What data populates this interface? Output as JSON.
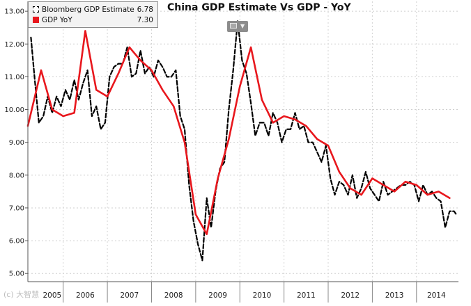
{
  "chart_data": {
    "type": "line",
    "title": "China GDP Estimate Vs GDP - YoY",
    "xlabel": "",
    "ylabel": "",
    "ylim": [
      4.75,
      13.3
    ],
    "yticks": [
      "13.00",
      "12.00",
      "11.00",
      "10.00",
      "9.00",
      "8.00",
      "7.00",
      "6.00",
      "5.00"
    ],
    "ytick_values": [
      13,
      12,
      11,
      10,
      9,
      8,
      7,
      6,
      5
    ],
    "x_range": [
      2005.2,
      2014.95
    ],
    "year_labels": [
      "2005",
      "2006",
      "2007",
      "2008",
      "2009",
      "2010",
      "2011",
      "2012",
      "2013",
      "2014"
    ],
    "year_label_positions": [
      2005.75,
      2006.5,
      2007.5,
      2008.5,
      2009.5,
      2010.5,
      2011.5,
      2012.5,
      2013.5,
      2014.45
    ],
    "year_boundaries": [
      2006,
      2007,
      2008,
      2009,
      2010,
      2011,
      2012,
      2013,
      2014
    ],
    "grid": true,
    "legend_position": "top-left",
    "series": [
      {
        "name": "Bloomberg GDP Estimate",
        "legend_value": "6.78",
        "color": "#000000",
        "style": "dashed",
        "x": [
          2005.27,
          2005.35,
          2005.45,
          2005.55,
          2005.65,
          2005.75,
          2005.85,
          2005.95,
          2006.05,
          2006.15,
          2006.25,
          2006.35,
          2006.45,
          2006.55,
          2006.65,
          2006.75,
          2006.85,
          2006.95,
          2007.05,
          2007.15,
          2007.25,
          2007.35,
          2007.45,
          2007.55,
          2007.65,
          2007.75,
          2007.85,
          2007.95,
          2008.05,
          2008.15,
          2008.25,
          2008.35,
          2008.45,
          2008.55,
          2008.65,
          2008.75,
          2008.85,
          2008.95,
          2009.05,
          2009.15,
          2009.25,
          2009.35,
          2009.45,
          2009.55,
          2009.65,
          2009.75,
          2009.85,
          2009.95,
          2010.05,
          2010.15,
          2010.25,
          2010.35,
          2010.45,
          2010.55,
          2010.65,
          2010.75,
          2010.85,
          2010.95,
          2011.05,
          2011.15,
          2011.25,
          2011.35,
          2011.45,
          2011.55,
          2011.65,
          2011.75,
          2011.85,
          2011.95,
          2012.05,
          2012.15,
          2012.25,
          2012.35,
          2012.45,
          2012.55,
          2012.65,
          2012.75,
          2012.85,
          2012.95,
          2013.05,
          2013.15,
          2013.25,
          2013.35,
          2013.45,
          2013.55,
          2013.65,
          2013.75,
          2013.85,
          2013.95,
          2014.05,
          2014.15,
          2014.25,
          2014.35,
          2014.45,
          2014.55,
          2014.65,
          2014.75,
          2014.85,
          2014.9
        ],
        "y": [
          12.2,
          11.0,
          9.6,
          9.8,
          10.4,
          9.9,
          10.4,
          10.1,
          10.6,
          10.3,
          10.9,
          10.3,
          10.8,
          11.2,
          9.8,
          10.1,
          9.4,
          9.6,
          11.0,
          11.3,
          11.4,
          11.4,
          11.9,
          11.0,
          11.1,
          11.8,
          11.1,
          11.3,
          11.0,
          11.5,
          11.3,
          11.0,
          11.0,
          11.2,
          9.8,
          9.4,
          7.7,
          6.6,
          5.9,
          5.4,
          7.3,
          6.4,
          7.5,
          8.2,
          8.4,
          10.0,
          11.2,
          12.7,
          11.5,
          11.1,
          10.2,
          9.2,
          9.6,
          9.6,
          9.2,
          9.9,
          9.6,
          9.0,
          9.4,
          9.4,
          9.9,
          9.4,
          9.5,
          9.0,
          9.0,
          8.7,
          8.4,
          8.9,
          7.9,
          7.4,
          7.8,
          7.7,
          7.4,
          8.0,
          7.3,
          7.6,
          8.1,
          7.6,
          7.4,
          7.2,
          7.8,
          7.4,
          7.5,
          7.6,
          7.7,
          7.7,
          7.8,
          7.7,
          7.2,
          7.7,
          7.4,
          7.5,
          7.3,
          7.2,
          6.4,
          6.9,
          6.9,
          6.8
        ]
      },
      {
        "name": "GDP YoY",
        "legend_value": "7.30",
        "color": "#e8171d",
        "style": "solid",
        "x": [
          2005.2,
          2005.5,
          2005.75,
          2006.0,
          2006.25,
          2006.5,
          2006.75,
          2007.0,
          2007.25,
          2007.5,
          2007.75,
          2008.0,
          2008.25,
          2008.5,
          2008.75,
          2009.0,
          2009.25,
          2009.5,
          2009.75,
          2010.0,
          2010.25,
          2010.5,
          2010.75,
          2011.0,
          2011.25,
          2011.5,
          2011.75,
          2012.0,
          2012.25,
          2012.5,
          2012.75,
          2013.0,
          2013.25,
          2013.5,
          2013.75,
          2014.0,
          2014.25,
          2014.5,
          2014.75
        ],
        "y": [
          9.5,
          11.2,
          10.0,
          9.8,
          9.9,
          12.4,
          10.6,
          10.4,
          11.1,
          11.9,
          11.5,
          11.2,
          10.6,
          10.1,
          9.0,
          6.8,
          6.2,
          7.9,
          9.1,
          10.7,
          11.9,
          10.3,
          9.6,
          9.8,
          9.7,
          9.5,
          9.1,
          8.9,
          8.1,
          7.6,
          7.4,
          7.9,
          7.7,
          7.5,
          7.8,
          7.7,
          7.4,
          7.5,
          7.3
        ]
      }
    ]
  },
  "watermark_text": "(c) 大智慧"
}
